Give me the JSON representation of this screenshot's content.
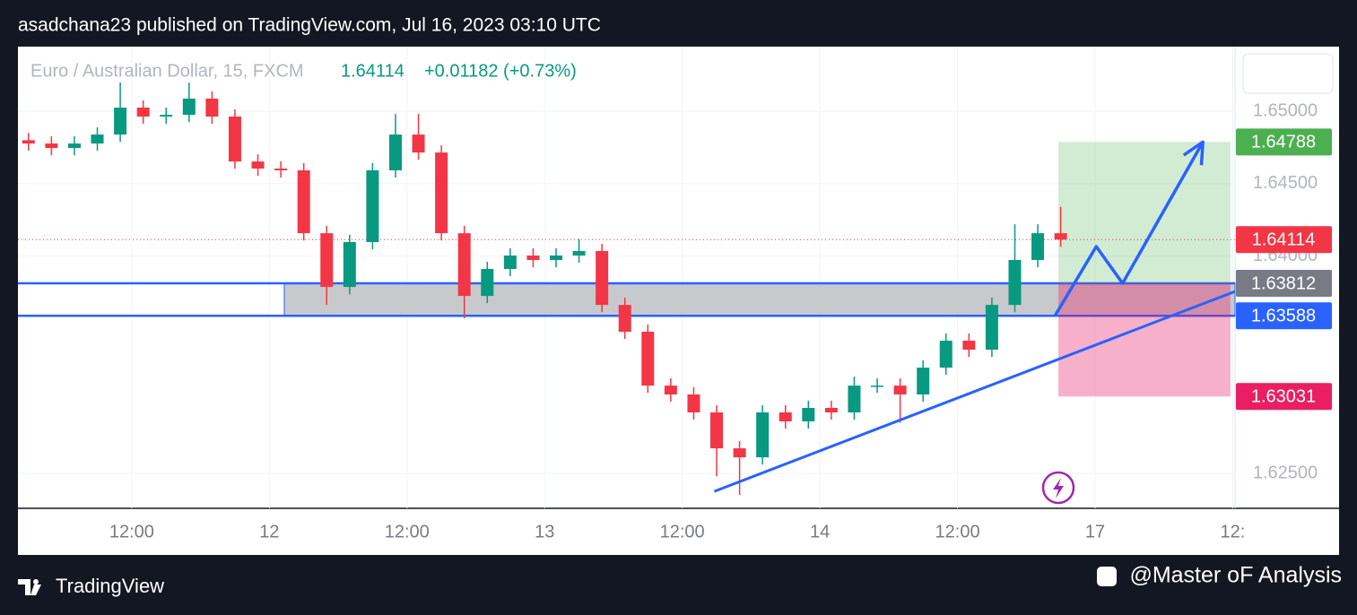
{
  "header": {
    "text": "asadchana23 published on TradingView.com, Jul 16, 2023 03:10 UTC"
  },
  "chart_data": {
    "type": "candlestick",
    "title": "Euro / Australian Dollar, 15, FXCM",
    "last_price": 1.64114,
    "change_text": "+0.01182 (+0.73%)",
    "up_color": "#089981",
    "down_color": "#f23645",
    "x": [
      1,
      3,
      5,
      7,
      9,
      11,
      13,
      15,
      17,
      19,
      21,
      23,
      25,
      27,
      29,
      31,
      33,
      35,
      37,
      39,
      41,
      43,
      45,
      47,
      49,
      51,
      53,
      55,
      57,
      59,
      61,
      63,
      65,
      67,
      69,
      71,
      73,
      75,
      77,
      79,
      81,
      83,
      85,
      87,
      89,
      91
    ],
    "open": [
      1.648,
      1.64777,
      1.64746,
      1.64777,
      1.64839,
      1.65025,
      1.64963,
      1.64975,
      1.65087,
      1.64963,
      1.64653,
      1.64604,
      1.64592,
      1.64158,
      1.63787,
      1.64097,
      1.64592,
      1.64839,
      1.64715,
      1.64158,
      1.63725,
      1.63911,
      1.64004,
      1.63973,
      1.64004,
      1.64035,
      1.63663,
      1.63478,
      1.63106,
      1.63045,
      1.62921,
      1.62673,
      1.62611,
      1.62921,
      1.62859,
      1.62952,
      1.62921,
      1.63106,
      1.63106,
      1.63045,
      1.6323,
      1.63416,
      1.63354,
      1.63663,
      1.63973,
      1.64158
    ],
    "high": [
      1.6485,
      1.64827,
      1.64827,
      1.64889,
      1.65198,
      1.65075,
      1.65025,
      1.65198,
      1.65137,
      1.65013,
      1.64703,
      1.64654,
      1.64642,
      1.64208,
      1.64147,
      1.64642,
      1.64981,
      1.64981,
      1.64765,
      1.64208,
      1.63961,
      1.64054,
      1.64054,
      1.64054,
      1.64118,
      1.64085,
      1.63713,
      1.63528,
      1.63156,
      1.63095,
      1.62971,
      1.62723,
      1.62971,
      1.62971,
      1.63002,
      1.63002,
      1.63168,
      1.63156,
      1.63156,
      1.6328,
      1.63466,
      1.63466,
      1.63713,
      1.6422,
      1.6422,
      1.6434
    ],
    "low": [
      1.64727,
      1.64696,
      1.64696,
      1.64727,
      1.64789,
      1.64913,
      1.64913,
      1.64925,
      1.64913,
      1.64603,
      1.64554,
      1.64542,
      1.64108,
      1.63663,
      1.63737,
      1.64047,
      1.64542,
      1.64665,
      1.64108,
      1.63571,
      1.63675,
      1.63861,
      1.63923,
      1.63923,
      1.63954,
      1.63613,
      1.63428,
      1.63056,
      1.62995,
      1.62871,
      1.6248,
      1.62351,
      1.62561,
      1.62809,
      1.62809,
      1.62871,
      1.62871,
      1.63056,
      1.6285,
      1.62995,
      1.6318,
      1.63304,
      1.63304,
      1.63613,
      1.63923,
      1.64064
    ],
    "close": [
      1.64777,
      1.64746,
      1.64777,
      1.64839,
      1.65025,
      1.64963,
      1.64975,
      1.65087,
      1.64963,
      1.64653,
      1.64604,
      1.64592,
      1.64158,
      1.63787,
      1.64097,
      1.64592,
      1.64839,
      1.64715,
      1.64158,
      1.63725,
      1.63911,
      1.64004,
      1.63973,
      1.64004,
      1.64035,
      1.63663,
      1.63478,
      1.63106,
      1.63045,
      1.62921,
      1.62673,
      1.62611,
      1.62921,
      1.62859,
      1.62952,
      1.62921,
      1.63106,
      1.63106,
      1.63045,
      1.6323,
      1.63416,
      1.63354,
      1.63663,
      1.63973,
      1.64158,
      1.64114
    ],
    "xlim": [
      0,
      106.2
    ],
    "xticks": [
      {
        "value": 10,
        "label": "12:00"
      },
      {
        "value": 22,
        "label": "12"
      },
      {
        "value": 34,
        "label": "12:00"
      },
      {
        "value": 46,
        "label": "13"
      },
      {
        "value": 58,
        "label": "12:00"
      },
      {
        "value": 70,
        "label": "14"
      },
      {
        "value": 82,
        "label": "12:00"
      },
      {
        "value": 94,
        "label": "17"
      },
      {
        "value": 106,
        "label": "12:"
      }
    ],
    "ylim": [
      1.62259,
      1.65446
    ],
    "yticks": [
      {
        "value": 1.65,
        "label": "1.65000"
      },
      {
        "value": 1.645,
        "label": "1.64500"
      },
      {
        "value": 1.64,
        "label": "1.64000"
      },
      {
        "value": 1.625,
        "label": "1.62500"
      }
    ],
    "grid": true,
    "zone": {
      "start_x": 23.3,
      "top": 1.63812,
      "bottom": 1.63588
    },
    "position": {
      "start_x": 90.8,
      "end_x": 105.8,
      "target": 1.64788,
      "entry": 1.63812,
      "stop": 1.63031
    },
    "trendline": {
      "x": [
        60.8,
        106.2
      ],
      "y": [
        1.62376,
        1.63756
      ]
    },
    "projection": {
      "x": [
        90.5,
        94.1,
        96.4,
        103.4
      ],
      "y": [
        1.63588,
        1.64066,
        1.63812,
        1.64788
      ]
    },
    "price_labels": [
      {
        "value": 1.64788,
        "color": "#4caf50"
      },
      {
        "value": 1.64114,
        "color": "#f23645"
      },
      {
        "value": 1.63812,
        "color": "#2962ff"
      },
      {
        "value": 1.63812,
        "color": "#787b86"
      },
      {
        "value": 1.63588,
        "color": "#2962ff"
      },
      {
        "value": 1.63031,
        "color": "#e91e63"
      }
    ]
  },
  "footer": {
    "brand": "TradingView",
    "credit": "@Master oF Analysis"
  }
}
